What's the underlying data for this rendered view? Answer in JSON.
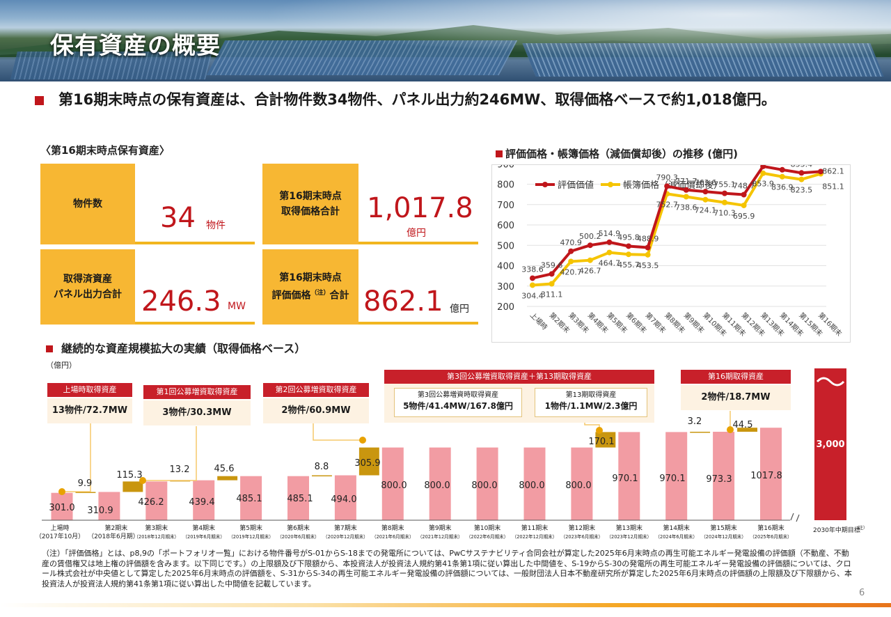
{
  "page": {
    "title": "保有資産の概要",
    "lead": "第16期末時点の保有資産は、合計物件数34物件、パネル出力約246MW、取得価格ベースで約1,018億円。",
    "page_number": "6",
    "note": "（注）「評価価格」とは、p8,9の「ポートフォリオ一覧」における物件番号がS-01からS-18までの発電所については、PwCサステナビリティ合同会社が算定した2025年6月末時点の再生可能エネルギー発電設備の評価額（不動産、不動産の賃借権又は地上権の評価額を含みます。以下同じです。）の上限額及び下限額から、本投資法人が投資法人規約第41条第1項に従い算出した中間値を、S-19からS-30の発電所の再生可能エネルギー発電設備の評価額については、クロール株式会社が中央値として算定した2025年6月末時点の評価額を、S-31からS-34の再生可能エネルギー発電設備の評価額については、一般財団法人日本不動産研究所が算定した2025年6月末時点の評価額の上限額及び下限額から、本投資法人が投資法人規約第41条第1項に従い算出した中間値を記載しています。",
    "colors": {
      "accent_red": "#c0161b",
      "yellow": "#f7b733",
      "bar_pink": "#f29ca3",
      "increment_gold": "#c9960f"
    }
  },
  "summary": {
    "heading": "〈第16期末時点保有資産〉",
    "cards": [
      {
        "label": "物件数",
        "value": "34",
        "unit": "物件"
      },
      {
        "label_line1": "第16期末時点",
        "label_line2": "取得価格合計",
        "value": "1,017.8",
        "unit": "億円"
      },
      {
        "label_line1": "取得済資産",
        "label_line2": "パネル出力合計",
        "value": "246.3",
        "unit": "MW"
      },
      {
        "label_line1": "第16期末時点",
        "label_line2_a": "評価価格",
        "label_note": "（注）",
        "label_line2_b": "合計",
        "value": "862.1",
        "unit": "億円"
      }
    ]
  },
  "trend": {
    "heading": "評価価格・帳簿価格（減価償却後）の推移 (億円)"
  },
  "growth": {
    "heading": "継続的な資産規模拡大の実績（取得価格ベース）",
    "y_unit": "（億円）",
    "boxes": [
      {
        "title": "上場時取得資産",
        "body": "13物件/72.7MW"
      },
      {
        "title": "第1回公募増資取得資産",
        "body": "3物件/30.3MW"
      },
      {
        "title": "第2回公募増資取得資産",
        "body": "2物件/60.9MW"
      },
      {
        "title": "第3回公募増資取得資産＋第13期取得資産",
        "sub": [
          {
            "title": "第3回公募増資時取得資産",
            "body": "5物件/41.4MW/167.8億円"
          },
          {
            "title": "第13期取得資産",
            "body": "1物件/1.1MW/2.3億円"
          }
        ]
      },
      {
        "title": "第16期取得資産",
        "body": "2物件/18.7MW"
      }
    ]
  },
  "chart_data": [
    {
      "type": "line",
      "title": "評価価格・帳簿価格（減価償却後）の推移 (億円)",
      "categories": [
        "上場時",
        "第2期末",
        "第3期末",
        "第4期末",
        "第5期末",
        "第6期末",
        "第7期末",
        "第8期末",
        "第9期末",
        "第10期末",
        "第11期末",
        "第12期末",
        "第13期末",
        "第14期末",
        "第15期末",
        "第16期末"
      ],
      "series": [
        {
          "name": "評価価値",
          "color": "#c0161b",
          "values": [
            338.6,
            359.6,
            470.9,
            500.2,
            514.9,
            495.8,
            488.9,
            790.3,
            771.7,
            763.6,
            755.1,
            748.7,
            887.5,
            870.8,
            855.4,
            862.1
          ]
        },
        {
          "name": "帳簿価格（減価償却後）",
          "color": "#f5c400",
          "values": [
            304.4,
            311.1,
            420.7,
            426.7,
            464.7,
            455.7,
            453.5,
            752.7,
            738.6,
            724.1,
            710.3,
            695.9,
            853.9,
            836.9,
            823.5,
            851.1
          ]
        }
      ],
      "yticks": [
        200,
        300,
        400,
        500,
        600,
        700,
        800,
        900
      ],
      "ylim": [
        200,
        900
      ],
      "grid": true,
      "legend": "top"
    },
    {
      "type": "bar",
      "title": "継続的な資産規模拡大の実績（取得価格ベース）",
      "ylabel": "（億円）",
      "categories": [
        "上場時",
        "第2期末",
        "第3期末",
        "第4期末",
        "第5期末",
        "第6期末",
        "第7期末",
        "第8期末",
        "第9期末",
        "第10期末",
        "第11期末",
        "第12期末",
        "第13期末",
        "第14期末",
        "第15期末",
        "第16期末"
      ],
      "sublabels": [
        "（2017年10月）",
        "（2018年6月期）",
        "（2018年12月期末）",
        "（2019年6月期末）",
        "（2019年12月期末）",
        "（2020年6月期末）",
        "（2020年12月期末）",
        "（2021年6月期末）",
        "（2021年12月期末）",
        "（2022年6月期末）",
        "（2022年12月期末）",
        "（2023年6月期末）",
        "（2023年12月期末）",
        "（2024年6月期末）",
        "（2024年12月期末）",
        "（2025年6月期末）"
      ],
      "base": [
        301.0,
        310.9,
        426.2,
        439.4,
        485.1,
        485.1,
        494.0,
        800.0,
        800.0,
        800.0,
        800.0,
        800.0,
        970.1,
        970.1,
        973.3,
        1017.8
      ],
      "increments": [
        9.9,
        115.3,
        13.2,
        45.6,
        null,
        8.8,
        305.9,
        null,
        null,
        null,
        null,
        170.1,
        null,
        3.2,
        44.5,
        null
      ],
      "increment_labels": [
        "9.9",
        "115.3",
        "13.2",
        "45.6",
        "",
        "8.8",
        "305.9",
        "",
        "",
        "",
        "",
        "170.1",
        "",
        "3.2",
        "44.5",
        ""
      ],
      "target": {
        "label": "2030年中期目標",
        "note": "（注）",
        "value": "3,000"
      }
    }
  ]
}
